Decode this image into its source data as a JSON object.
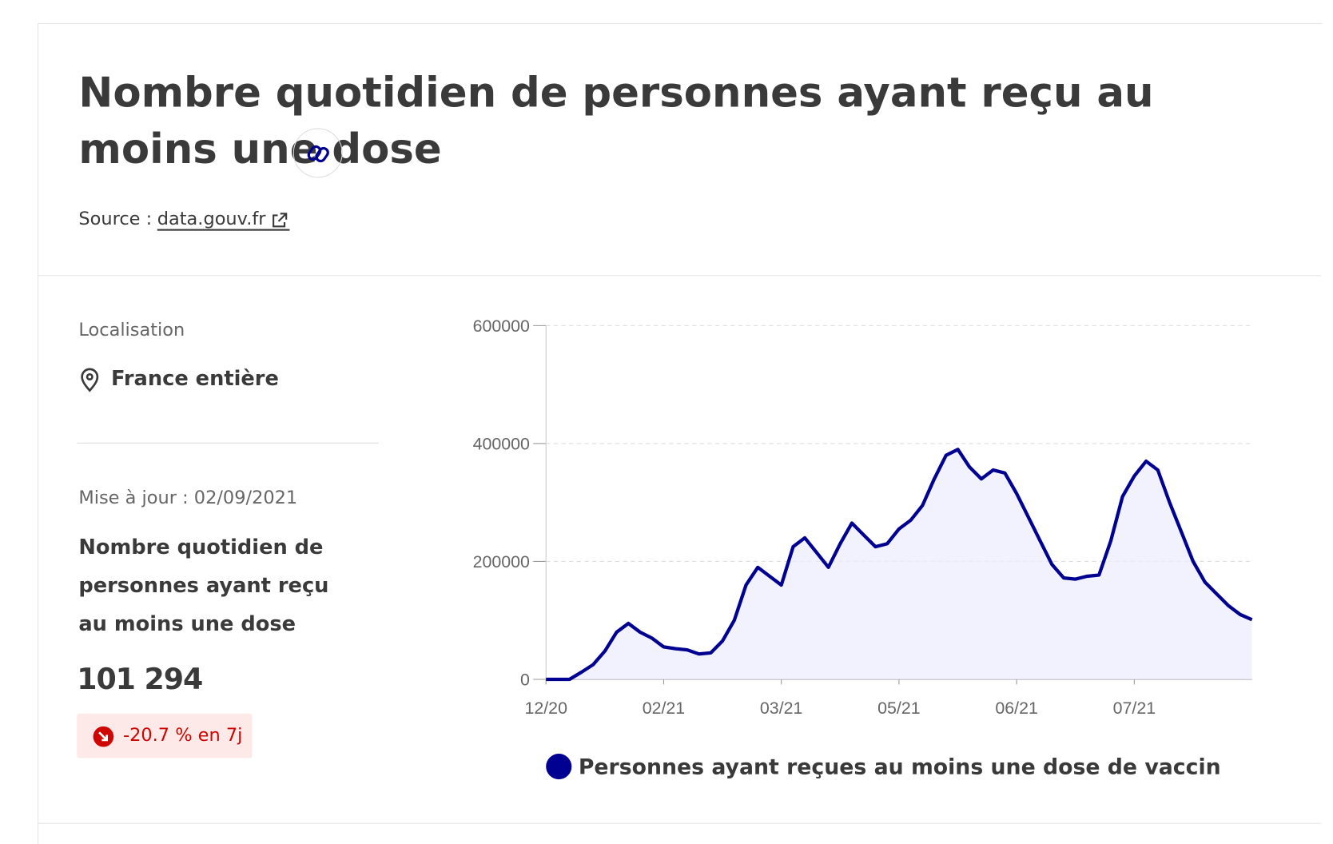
{
  "header": {
    "title": "Nombre quotidien de personnes ayant reçu au moins une dose",
    "source_label": "Source :",
    "source_link": "data.gouv.fr"
  },
  "sidebar": {
    "localisation_label": "Localisation",
    "location": "France entière",
    "update": "Mise à jour : 02/09/2021",
    "indicator": "Nombre quotidien de personnes ayant reçu au moins une dose",
    "value": "101 294",
    "change": "-20.7 % en 7j"
  },
  "chart_data": {
    "type": "line",
    "categories": [
      "12/20",
      null,
      null,
      null,
      null,
      null,
      null,
      null,
      null,
      null,
      "02/21",
      null,
      null,
      null,
      null,
      null,
      null,
      null,
      null,
      null,
      "03/21",
      null,
      null,
      null,
      null,
      null,
      null,
      null,
      null,
      null,
      "05/21",
      null,
      null,
      null,
      null,
      null,
      null,
      null,
      null,
      null,
      "06/21",
      null,
      null,
      null,
      null,
      null,
      null,
      null,
      null,
      null,
      "07/21",
      null,
      null,
      null,
      null,
      null,
      null,
      null,
      null,
      null,
      null
    ],
    "series": [
      {
        "name": "Personnes ayant reçues au moins une dose de vaccin",
        "color": "#000091",
        "values": [
          0,
          0,
          0,
          12000,
          25000,
          48000,
          80000,
          95000,
          80000,
          70000,
          55000,
          52000,
          50000,
          43000,
          45000,
          65000,
          100000,
          160000,
          190000,
          175000,
          160000,
          225000,
          240000,
          215000,
          190000,
          230000,
          265000,
          245000,
          225000,
          230000,
          255000,
          270000,
          295000,
          340000,
          380000,
          390000,
          360000,
          340000,
          355000,
          350000,
          315000,
          275000,
          235000,
          195000,
          172000,
          170000,
          175000,
          177000,
          235000,
          310000,
          345000,
          370000,
          355000,
          300000,
          250000,
          200000,
          165000,
          145000,
          125000,
          110000,
          101294
        ]
      }
    ],
    "ylim": [
      0,
      600000
    ],
    "yticks": [
      0,
      200000,
      400000,
      600000
    ],
    "grid": true,
    "area": true
  }
}
